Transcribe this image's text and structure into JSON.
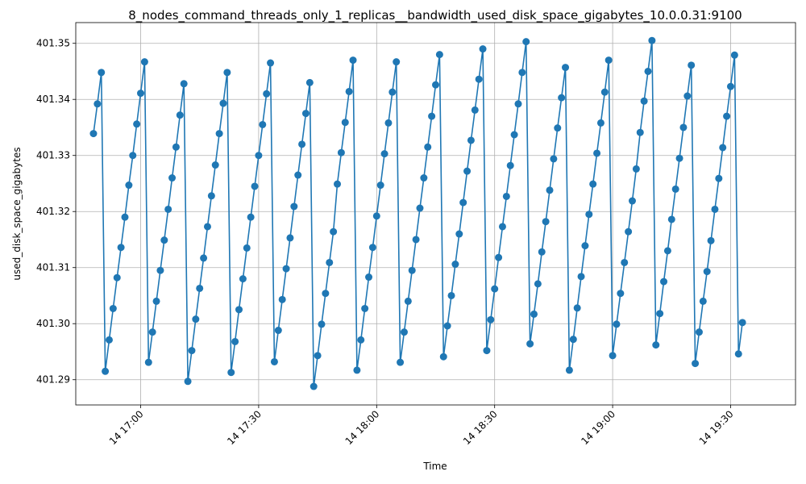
{
  "chart_data": {
    "type": "line",
    "title": "8_nodes_command_threads_only_1_replicas__bandwidth_used_disk_space_gigabytes_10.0.0.31:9100",
    "xlabel": "Time",
    "ylabel": "used_disk_space_gigabytes",
    "grid": true,
    "marker": "circle",
    "line_color": "#1f77b4",
    "x_ticks": [
      "14 17:00",
      "14 17:30",
      "14 18:00",
      "14 18:30",
      "14 19:00",
      "14 19:30"
    ],
    "x_tick_minutes": [
      0,
      30,
      60,
      90,
      120,
      150
    ],
    "y_ticks": [
      "401.29",
      "401.30",
      "401.31",
      "401.32",
      "401.33",
      "401.34",
      "401.35"
    ],
    "y_tick_values": [
      401.29,
      401.3,
      401.31,
      401.32,
      401.33,
      401.34,
      401.35
    ],
    "xlim_minutes": [
      -16.5,
      166.5
    ],
    "ylim": [
      401.2855,
      401.3537
    ],
    "x_start_time": "14 16:48",
    "x_interval_minutes": 1,
    "values": [
      401.3339,
      401.3392,
      401.3448,
      401.2915,
      401.2971,
      401.3027,
      401.3082,
      401.3136,
      401.319,
      401.3247,
      401.33,
      401.3356,
      401.3411,
      401.3467,
      401.2931,
      401.2985,
      401.304,
      401.3095,
      401.3149,
      401.3204,
      401.326,
      401.3315,
      401.3372,
      401.3428,
      401.2897,
      401.2952,
      401.3008,
      401.3063,
      401.3117,
      401.3173,
      401.3228,
      401.3283,
      401.3339,
      401.3393,
      401.3448,
      401.2913,
      401.2968,
      401.3025,
      401.308,
      401.3135,
      401.319,
      401.3245,
      401.33,
      401.3355,
      401.341,
      401.3465,
      401.2932,
      401.2988,
      401.3043,
      401.3098,
      401.3153,
      401.3209,
      401.3265,
      401.332,
      401.3375,
      401.343,
      401.2888,
      401.2943,
      401.2999,
      401.3054,
      401.3109,
      401.3164,
      401.3249,
      401.3305,
      401.3359,
      401.3414,
      401.347,
      401.2917,
      401.2971,
      401.3027,
      401.3083,
      401.3136,
      401.3192,
      401.3247,
      401.3303,
      401.3358,
      401.3413,
      401.3467,
      401.2931,
      401.2985,
      401.304,
      401.3095,
      401.315,
      401.3206,
      401.326,
      401.3315,
      401.337,
      401.3426,
      401.348,
      401.2941,
      401.2996,
      401.305,
      401.3106,
      401.316,
      401.3216,
      401.3272,
      401.3327,
      401.3381,
      401.3436,
      401.349,
      401.2952,
      401.3007,
      401.3062,
      401.3118,
      401.3173,
      401.3227,
      401.3282,
      401.3337,
      401.3392,
      401.3448,
      401.3503,
      401.2964,
      401.3017,
      401.3071,
      401.3128,
      401.3182,
      401.3238,
      401.3294,
      401.3349,
      401.3403,
      401.3457,
      401.2917,
      401.2972,
      401.3028,
      401.3084,
      401.3139,
      401.3195,
      401.3249,
      401.3304,
      401.3358,
      401.3413,
      401.347,
      401.2943,
      401.2999,
      401.3054,
      401.3109,
      401.3164,
      401.3219,
      401.3276,
      401.3341,
      401.3397,
      401.345,
      401.3505,
      401.2962,
      401.3018,
      401.3075,
      401.313,
      401.3186,
      401.324,
      401.3295,
      401.335,
      401.3406,
      401.3461,
      401.2929,
      401.2985,
      401.304,
      401.3093,
      401.3148,
      401.3204,
      401.3259,
      401.3314,
      401.337,
      401.3423,
      401.3479,
      401.2946,
      401.3002
    ]
  }
}
